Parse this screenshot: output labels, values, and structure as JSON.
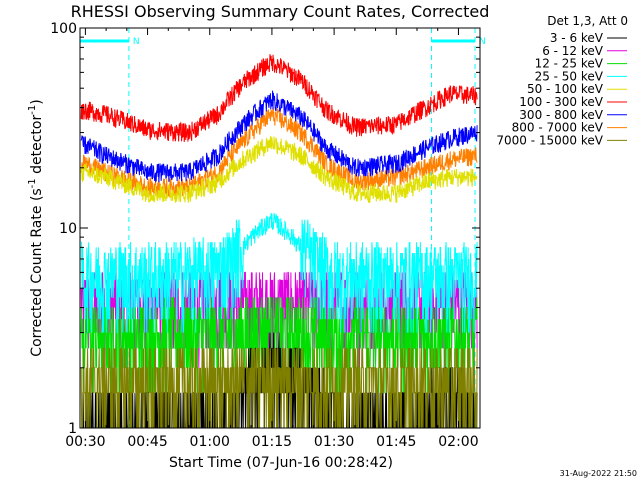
{
  "chart_data": {
    "type": "line",
    "title": "RHESSI Observing Summary Count Rates, Corrected",
    "xlabel": "Start Time (07-Jun-16 00:28:42)",
    "ylabel_main": "Corrected Count Rate (s",
    "ylabel_sup": "-1",
    "ylabel_mid": " detector",
    "ylabel_sup2": "-1",
    "ylabel_end": ")",
    "yscale": "log",
    "ylim": [
      1,
      100
    ],
    "xlim_minutes": [
      28.7,
      125.2
    ],
    "x_ticks": [
      "00:30",
      "00:45",
      "01:00",
      "01:15",
      "01:30",
      "01:45",
      "02:00"
    ],
    "x_tick_minutes": [
      30,
      45,
      60,
      75,
      90,
      105,
      120
    ],
    "y_ticks": [
      "1",
      "10",
      "100"
    ],
    "y_tick_values": [
      1,
      10,
      100
    ],
    "legend_title": "Det 1,3, Att 0",
    "legend_position": "top-right, outside plot",
    "night_marker_label": "N",
    "night_intervals_minutes": [
      [
        28.7,
        40.5
      ],
      [
        113.5,
        124.0
      ]
    ],
    "series": [
      {
        "name": "3 - 6 keV",
        "color": "#000000",
        "x": [
          30,
          50,
          65,
          70,
          75,
          80,
          85,
          95,
          110,
          115,
          120,
          124
        ],
        "values": [
          1,
          1,
          1,
          1.6,
          1.9,
          1.7,
          1.2,
          1,
          1,
          1.3,
          1.4,
          1
        ]
      },
      {
        "name": "6 - 12 keV",
        "color": "#e000e0",
        "x": [
          30,
          60,
          75,
          90,
          110,
          124
        ],
        "values": [
          4,
          4,
          4,
          4,
          4,
          4
        ]
      },
      {
        "name": "12 - 25 keV",
        "color": "#00e000",
        "x": [
          30,
          60,
          75,
          90,
          110,
          124
        ],
        "values": [
          2.8,
          2.8,
          3,
          2.8,
          2.8,
          2.8
        ]
      },
      {
        "name": "25 - 50 keV",
        "color": "#00ffff",
        "x": [
          30,
          40,
          50,
          60,
          65,
          70,
          75,
          80,
          85,
          90,
          110,
          124
        ],
        "values": [
          5.5,
          5.5,
          5.5,
          5.8,
          6.5,
          9,
          11,
          9,
          6.5,
          5.5,
          5.5,
          5.5
        ]
      },
      {
        "name": "50 - 100 keV",
        "color": "#e0e000",
        "x": [
          30,
          35,
          45,
          55,
          62,
          68,
          75,
          82,
          88,
          95,
          105,
          112,
          118,
          124
        ],
        "values": [
          19,
          18,
          15,
          15,
          17,
          22,
          27,
          23,
          18,
          15,
          15,
          17,
          18,
          18
        ]
      },
      {
        "name": "100 - 300 keV",
        "color": "#ff0000",
        "x": [
          30,
          35,
          45,
          55,
          62,
          68,
          75,
          82,
          88,
          95,
          105,
          112,
          118,
          124
        ],
        "values": [
          39,
          37,
          31,
          30,
          37,
          53,
          68,
          55,
          39,
          32,
          33,
          40,
          47,
          46
        ]
      },
      {
        "name": "300 - 800 keV",
        "color": "#0000ff",
        "x": [
          30,
          35,
          45,
          55,
          62,
          68,
          75,
          82,
          88,
          95,
          105,
          112,
          118,
          124
        ],
        "values": [
          26,
          23,
          19,
          19,
          23,
          33,
          44,
          36,
          25,
          20,
          21,
          25,
          28,
          30
        ]
      },
      {
        "name": "800 - 7000 keV",
        "color": "#ff8000",
        "x": [
          30,
          35,
          45,
          55,
          62,
          68,
          75,
          82,
          88,
          95,
          105,
          112,
          118,
          124
        ],
        "values": [
          21,
          19,
          16,
          16,
          19,
          27,
          37,
          30,
          21,
          17,
          18,
          20,
          22,
          23
        ]
      },
      {
        "name": "7000 - 15000 keV",
        "color": "#808000",
        "x": [
          30,
          60,
          75,
          90,
          110,
          124
        ],
        "values": [
          1.6,
          1.6,
          1.7,
          1.6,
          1.6,
          1.6
        ]
      }
    ]
  },
  "footer": {
    "timestamp": "31-Aug-2022 21:50"
  }
}
